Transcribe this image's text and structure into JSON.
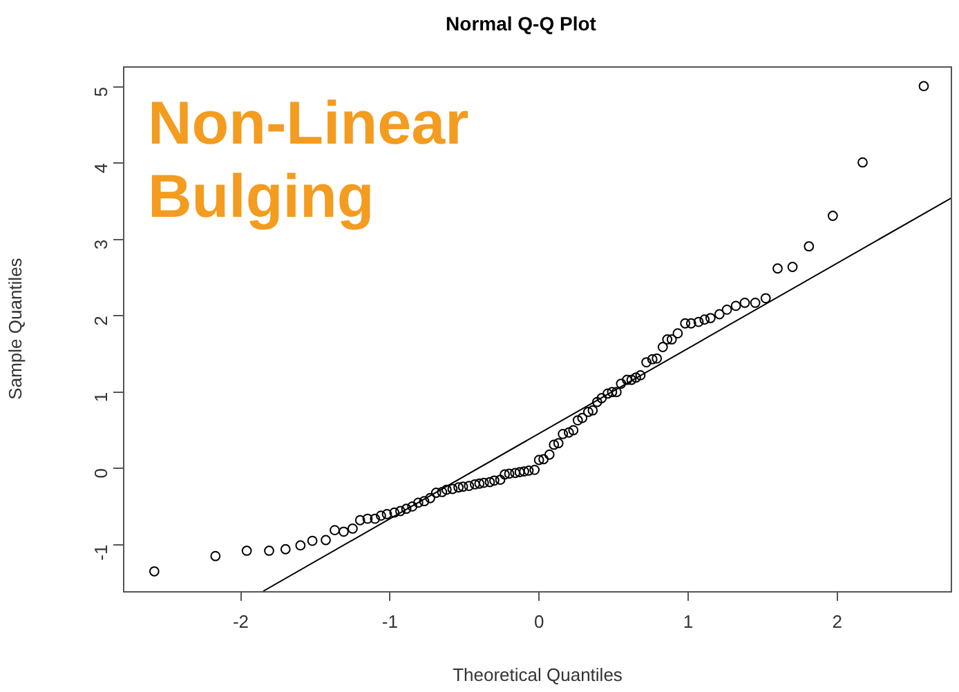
{
  "chart_data": {
    "type": "scatter",
    "title": "Normal Q-Q Plot",
    "xlabel": "Theoretical Quantiles",
    "ylabel": "Sample Quantiles",
    "annotations": [
      "Non-Linear Bulging"
    ],
    "xlim": [
      -2.79,
      2.77
    ],
    "ylim": [
      -1.61,
      5.27
    ],
    "xticks": [
      -2,
      -1,
      0,
      1,
      2
    ],
    "yticks": [
      -1,
      0,
      1,
      2,
      3,
      4,
      5
    ],
    "grid": false,
    "marker": "circle",
    "series": [
      {
        "color": "#000000",
        "x": [
          -2.58,
          -2.17,
          -1.96,
          -1.81,
          -1.7,
          -1.6,
          -1.52,
          -1.43,
          -1.37,
          -1.31,
          -1.25,
          -1.2,
          -1.15,
          -1.1,
          -1.06,
          -1.02,
          -0.97,
          -0.93,
          -0.89,
          -0.85,
          -0.81,
          -0.77,
          -0.73,
          -0.69,
          -0.65,
          -0.62,
          -0.58,
          -0.54,
          -0.51,
          -0.47,
          -0.43,
          -0.4,
          -0.37,
          -0.33,
          -0.3,
          -0.26,
          -0.23,
          -0.2,
          -0.16,
          -0.13,
          -0.1,
          -0.07,
          -0.03,
          0.0,
          0.03,
          0.07,
          0.1,
          0.13,
          0.16,
          0.2,
          0.23,
          0.26,
          0.29,
          0.33,
          0.36,
          0.39,
          0.42,
          0.46,
          0.49,
          0.52,
          0.55,
          0.59,
          0.62,
          0.65,
          0.68,
          0.72,
          0.76,
          0.79,
          0.83,
          0.86,
          0.89,
          0.93,
          0.98,
          1.02,
          1.07,
          1.11,
          1.15,
          1.21,
          1.26,
          1.32,
          1.38,
          1.45,
          1.52,
          1.6,
          1.7,
          1.81,
          1.97,
          2.17,
          2.58
        ],
        "values": [
          -1.35,
          -1.15,
          -1.08,
          -1.08,
          -1.06,
          -1.01,
          -0.95,
          -0.94,
          -0.81,
          -0.83,
          -0.79,
          -0.68,
          -0.66,
          -0.66,
          -0.62,
          -0.6,
          -0.58,
          -0.56,
          -0.53,
          -0.5,
          -0.45,
          -0.43,
          -0.39,
          -0.32,
          -0.31,
          -0.28,
          -0.27,
          -0.25,
          -0.24,
          -0.23,
          -0.21,
          -0.2,
          -0.19,
          -0.18,
          -0.16,
          -0.15,
          -0.08,
          -0.07,
          -0.06,
          -0.05,
          -0.04,
          -0.03,
          -0.02,
          0.11,
          0.12,
          0.18,
          0.31,
          0.33,
          0.45,
          0.47,
          0.5,
          0.63,
          0.66,
          0.74,
          0.76,
          0.87,
          0.92,
          0.98,
          1.0,
          1.0,
          1.11,
          1.16,
          1.16,
          1.19,
          1.22,
          1.39,
          1.43,
          1.44,
          1.59,
          1.69,
          1.69,
          1.77,
          1.9,
          1.9,
          1.92,
          1.95,
          1.97,
          2.02,
          2.08,
          2.13,
          2.17,
          2.17,
          2.23,
          2.62,
          2.64,
          2.91,
          3.31,
          4.01,
          5.01
        ]
      },
      {
        "type": "line",
        "marker": "none",
        "color": "#000000",
        "x": [
          -1.85,
          2.77
        ],
        "values": [
          -1.61,
          3.55
        ]
      }
    ]
  }
}
